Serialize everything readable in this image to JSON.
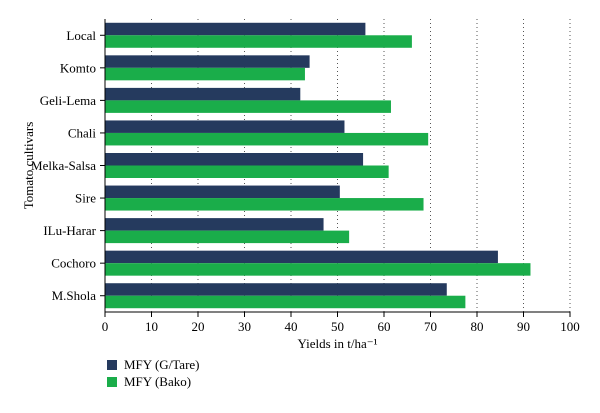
{
  "chart_data": {
    "type": "bar",
    "orientation": "horizontal",
    "categories": [
      "Local",
      "Komto",
      "Geli-Lema",
      "Chali",
      "Melka-Salsa",
      "Sire",
      "ILu-Harar",
      "Cochoro",
      "M.Shola"
    ],
    "series": [
      {
        "name": "MFY (G/Tare)",
        "color": "#253a5e",
        "values": [
          56,
          44,
          42,
          51.5,
          55.5,
          50.5,
          47,
          84.5,
          73.5
        ]
      },
      {
        "name": "MFY (Bako)",
        "color": "#1aad4a",
        "values": [
          66,
          43,
          61.5,
          69.5,
          61,
          68.5,
          52.5,
          91.5,
          77.5
        ]
      }
    ],
    "xlabel": "Yields in t/ha⁻¹",
    "ylabel": "Tomato cultivars",
    "xlim": [
      0,
      100
    ],
    "xticks": [
      0,
      10,
      20,
      30,
      40,
      50,
      60,
      70,
      80,
      90,
      100
    ],
    "grid": "vertical-dotted",
    "legend_position": "bottom-left"
  }
}
